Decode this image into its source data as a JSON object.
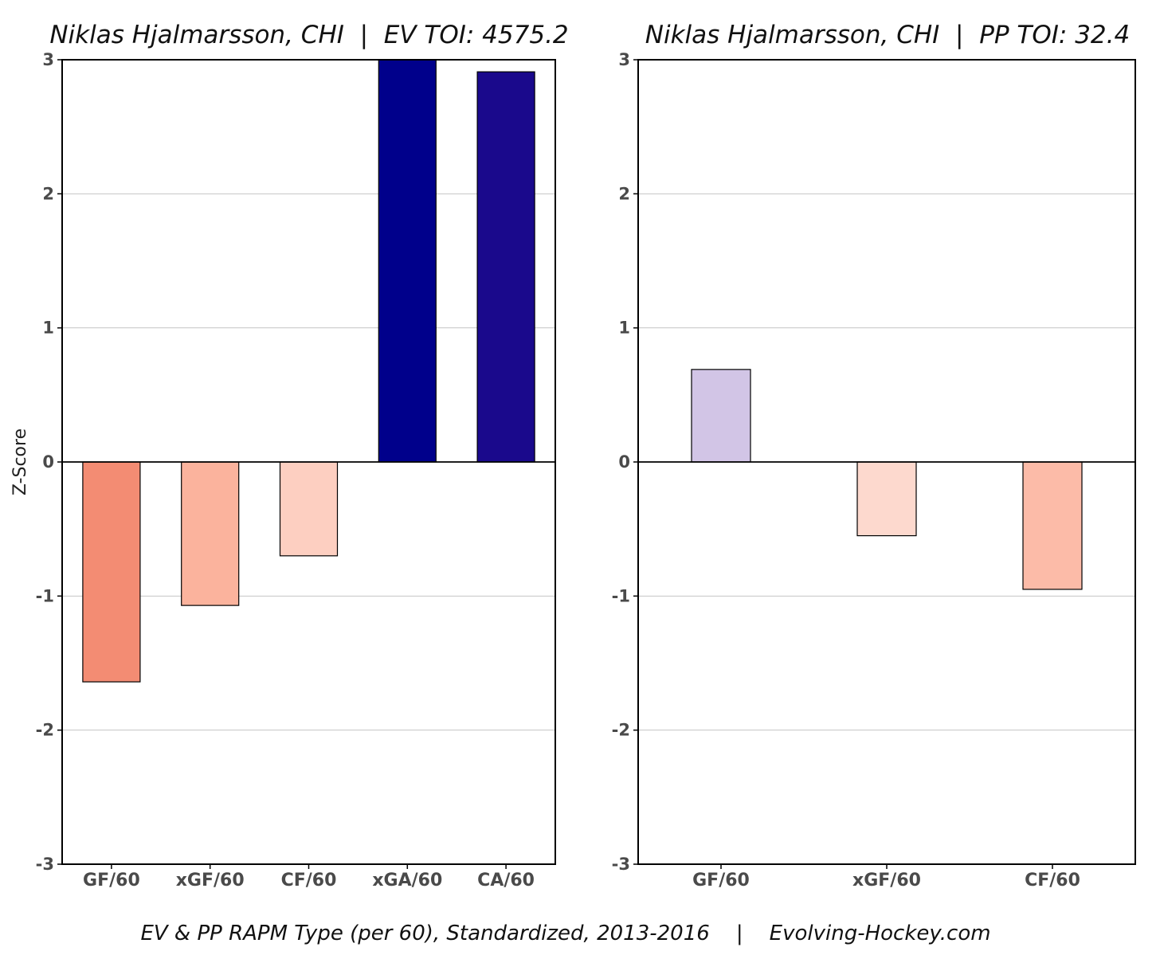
{
  "chart_data": [
    {
      "type": "bar",
      "title": "Niklas Hjalmarsson, CHI  |  EV TOI: 4575.2",
      "ylabel": "Z-Score",
      "xlabel": "",
      "ylim": [
        -3,
        3
      ],
      "yticks": [
        -3,
        -2,
        -1,
        0,
        1,
        2,
        3
      ],
      "grid": "horizontal",
      "categories": [
        "GF/60",
        "xGF/60",
        "CF/60",
        "xGA/60",
        "CA/60"
      ],
      "values": [
        -1.64,
        -1.07,
        -0.7,
        3.0,
        2.91
      ],
      "colors": [
        "#f38c73",
        "#fbb39d",
        "#fdcfc1",
        "#00008b",
        "#1a098c"
      ]
    },
    {
      "type": "bar",
      "title": "Niklas Hjalmarsson, CHI  |  PP TOI: 32.4",
      "ylabel": "",
      "xlabel": "",
      "ylim": [
        -3,
        3
      ],
      "yticks": [
        -3,
        -2,
        -1,
        0,
        1,
        2,
        3
      ],
      "grid": "horizontal",
      "categories": [
        "GF/60",
        "xGF/60",
        "CF/60"
      ],
      "values": [
        0.69,
        -0.55,
        -0.95
      ],
      "colors": [
        "#d2c5e6",
        "#fdd9ce",
        "#fcbba8"
      ]
    }
  ],
  "caption": "EV & PP RAPM Type (per 60), Standardized, 2013-2016    |    Evolving-Hockey.com"
}
